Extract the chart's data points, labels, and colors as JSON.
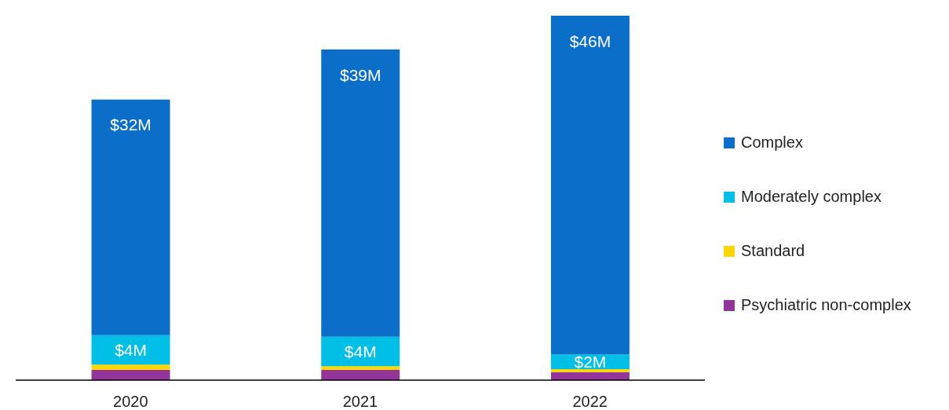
{
  "chart_data": {
    "type": "bar",
    "stacked": true,
    "categories": [
      "2020",
      "2021",
      "2022"
    ],
    "legend": "right",
    "series": [
      {
        "name": "Psychiatric non-complex",
        "color": "#93349a",
        "values": [
          1.4,
          1.4,
          1.1
        ]
      },
      {
        "name": "Standard",
        "color": "#ffd700",
        "values": [
          0.7,
          0.5,
          0.4
        ]
      },
      {
        "name": "Moderately complex",
        "color": "#00bfe6",
        "values": [
          4,
          4,
          2
        ],
        "value_labels": [
          "$4M",
          "$4M",
          "$2M"
        ]
      },
      {
        "name": "Complex",
        "color": "#0b6fc9",
        "values": [
          32,
          39,
          46
        ],
        "value_labels": [
          "$32M",
          "$39M",
          "$46M"
        ]
      }
    ]
  }
}
